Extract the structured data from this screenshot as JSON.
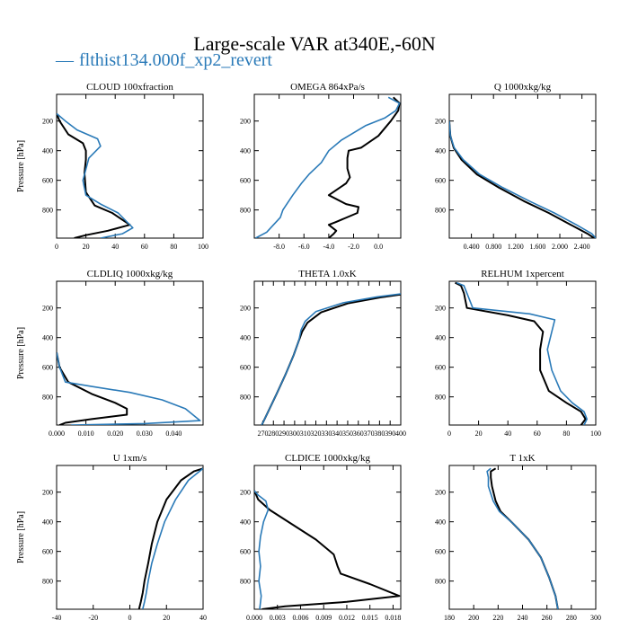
{
  "page": {
    "title": "Large-scale VAR at340E,-60N",
    "legend_label": "flthist134.000f_xp2_revert",
    "legend_dash": "—"
  },
  "colors": {
    "series_blue": "#2a7ab8",
    "series_black": "#000000"
  },
  "chart_data": [
    {
      "type": "line",
      "title": "CLOUD  100xfraction",
      "ylabel": "Pressure [hPa]",
      "xlim": [
        0,
        100
      ],
      "ylim": [
        990,
        20
      ],
      "xticks": [
        0,
        20,
        40,
        60,
        80,
        100
      ],
      "xtick_labels": [
        "0",
        "20",
        "40",
        "60",
        "80",
        "100"
      ],
      "yticks": [
        200,
        400,
        600,
        800
      ],
      "ytick_labels": [
        "200",
        "400",
        "600",
        "800"
      ],
      "series": [
        {
          "color": "#000000",
          "x": [
            0,
            2,
            8,
            18,
            20,
            20,
            19,
            20,
            26,
            38,
            50,
            35,
            20,
            12
          ],
          "y": [
            150,
            200,
            290,
            350,
            400,
            460,
            550,
            680,
            770,
            820,
            900,
            940,
            970,
            990
          ]
        },
        {
          "color": "#2a7ab8",
          "x": [
            0,
            6,
            14,
            28,
            30,
            22,
            18,
            20,
            30,
            42,
            52,
            45,
            30
          ],
          "y": [
            150,
            200,
            260,
            320,
            370,
            450,
            600,
            700,
            760,
            820,
            920,
            960,
            990
          ]
        }
      ]
    },
    {
      "type": "line",
      "title": "OMEGA  864xPa/s",
      "ylabel": "",
      "xlim": [
        -10,
        1.8
      ],
      "ylim": [
        990,
        20
      ],
      "xticks": [
        -8,
        -6,
        -4,
        -2,
        0
      ],
      "xtick_labels": [
        "-8.0",
        "-6.0",
        "-4.0",
        "-2.0",
        "0.0"
      ],
      "yticks": [
        200,
        400,
        600,
        800
      ],
      "ytick_labels": [
        "200",
        "400",
        "600",
        "800"
      ],
      "series": [
        {
          "color": "#000000",
          "x": [
            1.2,
            1.7,
            1.6,
            1.0,
            0,
            -1.4,
            -2.4,
            -2.5,
            -2.5,
            -2.3,
            -2.6,
            -4.0,
            -2.6,
            -1.6,
            -1.7,
            -3.4,
            -4.0,
            -3.4,
            -3.6,
            -4.0
          ],
          "y": [
            40,
            80,
            130,
            200,
            300,
            380,
            400,
            450,
            520,
            580,
            620,
            700,
            760,
            780,
            820,
            880,
            900,
            940,
            960,
            990
          ]
        },
        {
          "color": "#2a7ab8",
          "x": [
            0.8,
            1.7,
            1.4,
            0.5,
            -1.0,
            -3.0,
            -4.0,
            -4.6,
            -5.6,
            -6.2,
            -6.9,
            -7.7,
            -7.9,
            -9.0,
            -9.9
          ],
          "y": [
            40,
            80,
            130,
            180,
            230,
            330,
            400,
            480,
            560,
            620,
            700,
            800,
            850,
            950,
            990
          ]
        }
      ]
    },
    {
      "type": "line",
      "title": "Q  1000xkg/kg",
      "ylabel": "",
      "xlim": [
        0,
        2.65
      ],
      "ylim": [
        990,
        20
      ],
      "xticks": [
        0.4,
        0.8,
        1.2,
        1.6,
        2.0,
        2.4
      ],
      "xtick_labels": [
        "0.400",
        "0.800",
        "1.200",
        "1.600",
        "2.000",
        "2.400"
      ],
      "yticks": [
        200,
        400,
        600,
        800
      ],
      "ytick_labels": [
        "200",
        "400",
        "600",
        "800"
      ],
      "series": [
        {
          "color": "#000000",
          "x": [
            0,
            0.02,
            0.08,
            0.22,
            0.5,
            0.9,
            1.35,
            1.8,
            2.2,
            2.5,
            2.62
          ],
          "y": [
            200,
            300,
            380,
            460,
            560,
            650,
            740,
            820,
            900,
            960,
            990
          ]
        },
        {
          "color": "#2a7ab8",
          "x": [
            0,
            0.02,
            0.09,
            0.25,
            0.55,
            0.97,
            1.45,
            1.9,
            2.3,
            2.58,
            2.65
          ],
          "y": [
            200,
            300,
            380,
            460,
            560,
            650,
            740,
            820,
            900,
            960,
            990
          ]
        }
      ]
    },
    {
      "type": "line",
      "title": "CLDLIQ  1000xkg/kg",
      "ylabel": "Pressure [hPa]",
      "xlim": [
        0,
        0.05
      ],
      "ylim": [
        990,
        20
      ],
      "xticks": [
        0,
        0.01,
        0.02,
        0.03,
        0.04
      ],
      "xtick_labels": [
        "0.000",
        "0.010",
        "0.020",
        "0.030",
        "0.040"
      ],
      "yticks": [
        200,
        400,
        600,
        800
      ],
      "ytick_labels": [
        "200",
        "400",
        "600",
        "800"
      ],
      "series": [
        {
          "color": "#000000",
          "x": [
            0,
            0.001,
            0.004,
            0.012,
            0.02,
            0.024,
            0.024,
            0.012,
            0.003,
            0.001
          ],
          "y": [
            500,
            600,
            700,
            780,
            840,
            880,
            920,
            950,
            975,
            990
          ]
        },
        {
          "color": "#2a7ab8",
          "x": [
            0,
            0.001,
            0.003,
            0.012,
            0.025,
            0.036,
            0.044,
            0.049,
            0.03,
            0.005
          ],
          "y": [
            500,
            600,
            700,
            730,
            770,
            820,
            880,
            960,
            980,
            990
          ]
        }
      ]
    },
    {
      "type": "line",
      "title": "THETA  1.0xK",
      "ylabel": "",
      "xlim": [
        262,
        400
      ],
      "ylim": [
        990,
        20
      ],
      "xticks": [
        270,
        280,
        290,
        300,
        310,
        320,
        330,
        340,
        350,
        360,
        370,
        380,
        390,
        400
      ],
      "xtick_labels": [
        "270",
        "280",
        "290",
        "300",
        "310",
        "320",
        "330",
        "340",
        "350",
        "360",
        "370",
        "380",
        "390",
        "400"
      ],
      "yticks": [
        200,
        400,
        600,
        800
      ],
      "ytick_labels": [
        "200",
        "400",
        "600",
        "800"
      ],
      "series": [
        {
          "color": "#000000",
          "x": [
            400,
            380,
            350,
            325,
            312,
            307,
            304,
            299,
            292,
            283,
            275,
            269
          ],
          "y": [
            110,
            130,
            170,
            230,
            300,
            360,
            420,
            520,
            640,
            780,
            900,
            990
          ]
        },
        {
          "color": "#2a7ab8",
          "x": [
            400,
            378,
            346,
            320,
            310,
            306,
            304,
            299,
            292,
            283,
            275,
            269
          ],
          "y": [
            105,
            125,
            165,
            225,
            290,
            350,
            420,
            520,
            640,
            780,
            900,
            990
          ]
        }
      ]
    },
    {
      "type": "line",
      "title": "RELHUM  1xpercent",
      "ylabel": "",
      "xlim": [
        0,
        100
      ],
      "ylim": [
        990,
        20
      ],
      "xticks": [
        0,
        20,
        40,
        60,
        80,
        100
      ],
      "xtick_labels": [
        "0",
        "20",
        "40",
        "60",
        "80",
        "100"
      ],
      "yticks": [
        200,
        400,
        600,
        800
      ],
      "ytick_labels": [
        "200",
        "400",
        "600",
        "800"
      ],
      "series": [
        {
          "color": "#000000",
          "x": [
            4,
            8,
            10,
            12,
            40,
            58,
            64,
            62,
            62,
            68,
            80,
            90,
            93,
            90
          ],
          "y": [
            30,
            50,
            100,
            200,
            250,
            290,
            360,
            480,
            620,
            760,
            840,
            900,
            950,
            990
          ]
        },
        {
          "color": "#2a7ab8",
          "x": [
            5,
            10,
            12,
            16,
            55,
            72,
            70,
            67,
            70,
            76,
            84,
            92,
            94,
            92
          ],
          "y": [
            30,
            50,
            100,
            200,
            240,
            280,
            360,
            480,
            620,
            760,
            840,
            900,
            950,
            990
          ]
        }
      ]
    },
    {
      "type": "line",
      "title": "U  1xm/s",
      "ylabel": "Pressure [hPa]",
      "xlim": [
        -40,
        40
      ],
      "ylim": [
        990,
        20
      ],
      "xticks": [
        -40,
        -20,
        0,
        20,
        40
      ],
      "xtick_labels": [
        "-40",
        "-20",
        "0",
        "20",
        "40"
      ],
      "yticks": [
        200,
        400,
        600,
        800
      ],
      "ytick_labels": [
        "200",
        "400",
        "600",
        "800"
      ],
      "series": [
        {
          "color": "#000000",
          "x": [
            40,
            35,
            28,
            20,
            15,
            12,
            10,
            8,
            7,
            6,
            5
          ],
          "y": [
            40,
            60,
            120,
            250,
            400,
            550,
            680,
            800,
            880,
            940,
            990
          ]
        },
        {
          "color": "#2a7ab8",
          "x": [
            40,
            38,
            32,
            25,
            19,
            15,
            12,
            10,
            9,
            8,
            7
          ],
          "y": [
            40,
            60,
            120,
            250,
            400,
            550,
            680,
            800,
            880,
            940,
            990
          ]
        }
      ]
    },
    {
      "type": "line",
      "title": "CLDICE  1000xkg/kg",
      "ylabel": "",
      "xlim": [
        0,
        0.019
      ],
      "ylim": [
        990,
        20
      ],
      "xticks": [
        0,
        0.003,
        0.006,
        0.009,
        0.012,
        0.015,
        0.018
      ],
      "xtick_labels": [
        "0.000",
        "0.003",
        "0.006",
        "0.009",
        "0.012",
        "0.015",
        "0.018"
      ],
      "yticks": [
        200,
        400,
        600,
        800
      ],
      "ytick_labels": [
        "200",
        "400",
        "600",
        "800"
      ],
      "series": [
        {
          "color": "#000000",
          "x": [
            0,
            0.0005,
            0.002,
            0.005,
            0.008,
            0.0103,
            0.0108,
            0.0112,
            0.015,
            0.0188,
            0.012,
            0.004,
            0.001
          ],
          "y": [
            190,
            250,
            320,
            420,
            520,
            620,
            700,
            750,
            820,
            900,
            940,
            970,
            990
          ]
        },
        {
          "color": "#2a7ab8",
          "x": [
            0,
            0.0005,
            0.0015,
            0.0018,
            0.0012,
            0.0008,
            0.0006,
            0.0008,
            0.0006,
            0.0009,
            0.0007
          ],
          "y": [
            190,
            220,
            260,
            320,
            400,
            500,
            600,
            700,
            800,
            900,
            990
          ]
        }
      ]
    },
    {
      "type": "line",
      "title": "T  1xK",
      "ylabel": "",
      "xlim": [
        180,
        300
      ],
      "ylim": [
        990,
        20
      ],
      "xticks": [
        180,
        200,
        220,
        240,
        260,
        280,
        300
      ],
      "xtick_labels": [
        "180",
        "200",
        "220",
        "240",
        "260",
        "280",
        "300"
      ],
      "yticks": [
        200,
        400,
        600,
        800
      ],
      "ytick_labels": [
        "200",
        "400",
        "600",
        "800"
      ],
      "series": [
        {
          "color": "#000000",
          "x": [
            218,
            214,
            214,
            215,
            218,
            222,
            232,
            245,
            255,
            262,
            267,
            269
          ],
          "y": [
            40,
            60,
            100,
            160,
            260,
            330,
            410,
            520,
            640,
            780,
            900,
            990
          ]
        },
        {
          "color": "#2a7ab8",
          "x": [
            214,
            211,
            212,
            212,
            216,
            221,
            232,
            245,
            255,
            262,
            267,
            269
          ],
          "y": [
            40,
            60,
            100,
            160,
            260,
            330,
            410,
            520,
            640,
            780,
            900,
            990
          ]
        }
      ]
    }
  ]
}
